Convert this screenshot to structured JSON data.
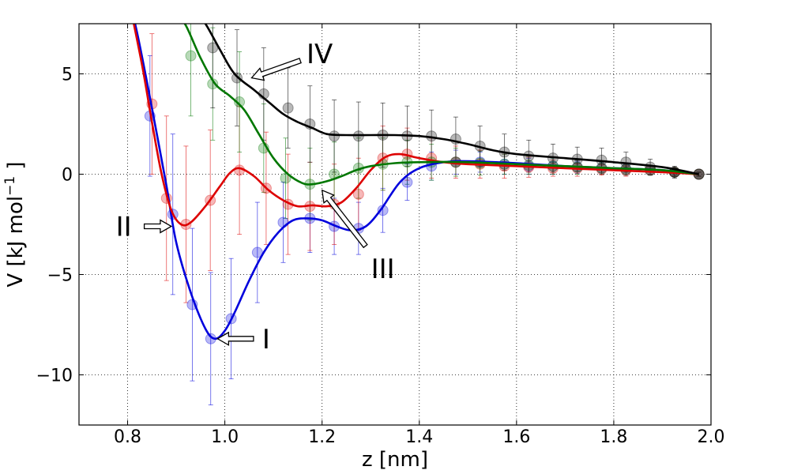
{
  "chart_data": {
    "type": "line",
    "title": "",
    "xlabel": "z [nm]",
    "ylabel_main": "V [kJ mol",
    "ylabel_sup": "−1",
    "ylabel_end": " ]",
    "xlim": [
      0.7,
      2.0
    ],
    "ylim": [
      -12.5,
      7.5
    ],
    "grid": true,
    "x_ticks": [
      0.8,
      1.0,
      1.2,
      1.4,
      1.6,
      1.8,
      2.0
    ],
    "x_tick_labels": [
      "0.8",
      "1.0",
      "1.2",
      "1.4",
      "1.6",
      "1.8",
      "2.0"
    ],
    "y_ticks": [
      5,
      0,
      -5,
      -10
    ],
    "y_tick_labels": [
      "5",
      "0",
      "−5",
      "−10"
    ],
    "series": [
      {
        "name": "blue",
        "color": "#0000dd",
        "curve": [
          [
            0.8,
            9.0
          ],
          [
            0.82,
            7.0
          ],
          [
            0.85,
            3.3
          ],
          [
            0.88,
            -0.6
          ],
          [
            0.9,
            -3.4
          ],
          [
            0.93,
            -5.9
          ],
          [
            0.96,
            -7.7
          ],
          [
            0.98,
            -8.2
          ],
          [
            1.0,
            -7.8
          ],
          [
            1.02,
            -6.9
          ],
          [
            1.05,
            -5.3
          ],
          [
            1.08,
            -3.9
          ],
          [
            1.11,
            -2.9
          ],
          [
            1.14,
            -2.3
          ],
          [
            1.17,
            -2.2
          ],
          [
            1.2,
            -2.3
          ],
          [
            1.23,
            -2.6
          ],
          [
            1.26,
            -2.8
          ],
          [
            1.29,
            -2.6
          ],
          [
            1.32,
            -1.8
          ],
          [
            1.36,
            -0.4
          ],
          [
            1.4,
            0.3
          ],
          [
            1.45,
            0.6
          ],
          [
            1.5,
            0.65
          ],
          [
            1.6,
            0.55
          ],
          [
            1.7,
            0.4
          ],
          [
            1.8,
            0.3
          ],
          [
            1.9,
            0.2
          ],
          [
            1.975,
            0.0
          ]
        ],
        "points": [
          [
            0.846,
            2.9,
            3.0
          ],
          [
            0.893,
            -2.0,
            4.0
          ],
          [
            0.933,
            -6.5,
            3.8
          ],
          [
            0.971,
            -8.2,
            3.3
          ],
          [
            1.013,
            -7.2,
            3.0
          ],
          [
            1.067,
            -3.9,
            2.5
          ],
          [
            1.12,
            -2.4,
            2.0
          ],
          [
            1.175,
            -2.2,
            1.7
          ],
          [
            1.225,
            -2.6,
            1.4
          ],
          [
            1.275,
            -2.7,
            1.3
          ],
          [
            1.325,
            -1.8,
            1.1
          ],
          [
            1.375,
            -0.4,
            0.9
          ],
          [
            1.425,
            0.4,
            0.7
          ],
          [
            1.475,
            0.6,
            0.6
          ],
          [
            1.525,
            0.6,
            0.5
          ],
          [
            1.575,
            0.5,
            0.5
          ],
          [
            1.625,
            0.4,
            0.4
          ],
          [
            1.675,
            0.4,
            0.4
          ],
          [
            1.725,
            0.35,
            0.3
          ],
          [
            1.775,
            0.3,
            0.3
          ],
          [
            1.825,
            0.25,
            0.3
          ],
          [
            1.875,
            0.2,
            0.2
          ],
          [
            1.925,
            0.1,
            0.2
          ],
          [
            1.975,
            0.0,
            0.1
          ]
        ]
      },
      {
        "name": "red",
        "color": "#dd0000",
        "curve": [
          [
            0.8,
            9.0
          ],
          [
            0.83,
            5.4
          ],
          [
            0.85,
            2.6
          ],
          [
            0.87,
            0.0
          ],
          [
            0.89,
            -1.8
          ],
          [
            0.91,
            -2.5
          ],
          [
            0.93,
            -2.4
          ],
          [
            0.96,
            -1.6
          ],
          [
            0.99,
            -0.6
          ],
          [
            1.01,
            0.05
          ],
          [
            1.03,
            0.3
          ],
          [
            1.06,
            -0.1
          ],
          [
            1.09,
            -0.8
          ],
          [
            1.12,
            -1.3
          ],
          [
            1.15,
            -1.6
          ],
          [
            1.18,
            -1.55
          ],
          [
            1.21,
            -1.6
          ],
          [
            1.24,
            -1.4
          ],
          [
            1.27,
            -0.7
          ],
          [
            1.3,
            0.2
          ],
          [
            1.33,
            0.85
          ],
          [
            1.36,
            1.0
          ],
          [
            1.4,
            0.8
          ],
          [
            1.45,
            0.6
          ],
          [
            1.5,
            0.5
          ],
          [
            1.6,
            0.4
          ],
          [
            1.7,
            0.3
          ],
          [
            1.8,
            0.2
          ],
          [
            1.9,
            0.1
          ],
          [
            1.975,
            0.0
          ]
        ],
        "points": [
          [
            0.85,
            3.5,
            3.5
          ],
          [
            0.88,
            -1.2,
            4.1
          ],
          [
            0.92,
            -2.5,
            3.9
          ],
          [
            0.97,
            -1.3,
            3.5
          ],
          [
            1.03,
            0.2,
            3.2
          ],
          [
            1.085,
            -0.7,
            2.8
          ],
          [
            1.13,
            -1.5,
            2.5
          ],
          [
            1.175,
            -1.6,
            2.2
          ],
          [
            1.225,
            -1.5,
            2.0
          ],
          [
            1.275,
            -1.0,
            1.8
          ],
          [
            1.325,
            0.8,
            1.6
          ],
          [
            1.375,
            1.0,
            1.3
          ],
          [
            1.425,
            0.8,
            1.0
          ],
          [
            1.475,
            0.6,
            0.8
          ],
          [
            1.525,
            0.5,
            0.7
          ],
          [
            1.575,
            0.4,
            0.6
          ],
          [
            1.625,
            0.35,
            0.5
          ],
          [
            1.675,
            0.3,
            0.4
          ],
          [
            1.725,
            0.3,
            0.4
          ],
          [
            1.775,
            0.25,
            0.3
          ],
          [
            1.825,
            0.2,
            0.3
          ],
          [
            1.875,
            0.2,
            0.2
          ],
          [
            1.925,
            0.1,
            0.2
          ],
          [
            1.975,
            0.0,
            0.1
          ]
        ]
      },
      {
        "name": "green",
        "color": "#007700",
        "curve": [
          [
            0.9,
            8.0
          ],
          [
            0.92,
            7.4
          ],
          [
            0.95,
            5.8
          ],
          [
            0.98,
            4.5
          ],
          [
            1.01,
            3.9
          ],
          [
            1.04,
            3.2
          ],
          [
            1.07,
            2.0
          ],
          [
            1.1,
            0.8
          ],
          [
            1.13,
            0.0
          ],
          [
            1.16,
            -0.45
          ],
          [
            1.18,
            -0.5
          ],
          [
            1.21,
            -0.35
          ],
          [
            1.24,
            -0.1
          ],
          [
            1.27,
            0.2
          ],
          [
            1.3,
            0.4
          ],
          [
            1.35,
            0.55
          ],
          [
            1.4,
            0.6
          ],
          [
            1.5,
            0.6
          ],
          [
            1.6,
            0.5
          ],
          [
            1.7,
            0.4
          ],
          [
            1.8,
            0.3
          ],
          [
            1.9,
            0.2
          ],
          [
            1.975,
            0.0
          ]
        ],
        "points": [
          [
            0.93,
            5.9,
            3.0
          ],
          [
            0.975,
            4.5,
            2.8
          ],
          [
            1.03,
            3.6,
            2.5
          ],
          [
            1.08,
            1.3,
            2.2
          ],
          [
            1.125,
            -0.2,
            2.0
          ],
          [
            1.175,
            -0.5,
            1.8
          ],
          [
            1.225,
            0.0,
            1.6
          ],
          [
            1.275,
            0.3,
            1.5
          ],
          [
            1.325,
            0.5,
            1.3
          ],
          [
            1.375,
            0.6,
            1.1
          ],
          [
            1.425,
            0.6,
            0.9
          ],
          [
            1.475,
            0.6,
            0.7
          ],
          [
            1.525,
            0.55,
            0.6
          ],
          [
            1.575,
            0.5,
            0.5
          ],
          [
            1.625,
            0.45,
            0.45
          ],
          [
            1.675,
            0.4,
            0.4
          ],
          [
            1.725,
            0.35,
            0.35
          ],
          [
            1.775,
            0.3,
            0.3
          ],
          [
            1.825,
            0.25,
            0.3
          ],
          [
            1.875,
            0.2,
            0.25
          ],
          [
            1.925,
            0.1,
            0.2
          ],
          [
            1.975,
            0.0,
            0.1
          ]
        ]
      },
      {
        "name": "black",
        "color": "#000000",
        "curve": [
          [
            0.94,
            8.0
          ],
          [
            0.96,
            7.5
          ],
          [
            0.99,
            6.2
          ],
          [
            1.02,
            5.0
          ],
          [
            1.06,
            4.2
          ],
          [
            1.09,
            3.6
          ],
          [
            1.12,
            3.0
          ],
          [
            1.15,
            2.6
          ],
          [
            1.18,
            2.3
          ],
          [
            1.21,
            2.0
          ],
          [
            1.25,
            1.95
          ],
          [
            1.3,
            1.95
          ],
          [
            1.35,
            1.95
          ],
          [
            1.4,
            1.9
          ],
          [
            1.45,
            1.75
          ],
          [
            1.5,
            1.5
          ],
          [
            1.55,
            1.2
          ],
          [
            1.6,
            1.0
          ],
          [
            1.7,
            0.8
          ],
          [
            1.8,
            0.6
          ],
          [
            1.9,
            0.35
          ],
          [
            1.975,
            0.0
          ]
        ],
        "points": [
          [
            0.975,
            6.3,
            3.0
          ],
          [
            1.025,
            4.8,
            2.4
          ],
          [
            1.08,
            4.0,
            2.3
          ],
          [
            1.13,
            3.3,
            2.0
          ],
          [
            1.175,
            2.5,
            1.9
          ],
          [
            1.225,
            1.9,
            1.8
          ],
          [
            1.275,
            1.9,
            1.7
          ],
          [
            1.325,
            1.95,
            1.6
          ],
          [
            1.375,
            1.9,
            1.5
          ],
          [
            1.425,
            1.9,
            1.3
          ],
          [
            1.475,
            1.75,
            1.1
          ],
          [
            1.525,
            1.4,
            1.0
          ],
          [
            1.575,
            1.1,
            0.9
          ],
          [
            1.625,
            0.9,
            0.8
          ],
          [
            1.675,
            0.8,
            0.7
          ],
          [
            1.725,
            0.75,
            0.6
          ],
          [
            1.775,
            0.7,
            0.6
          ],
          [
            1.825,
            0.6,
            0.5
          ],
          [
            1.875,
            0.35,
            0.4
          ],
          [
            1.925,
            0.1,
            0.3
          ],
          [
            1.975,
            0.0,
            0.1
          ]
        ]
      }
    ],
    "annotations": [
      {
        "label": "I",
        "text": [
          1.085,
          -8.2
        ],
        "tip": [
          0.985,
          -8.2
        ]
      },
      {
        "label": "II",
        "text": [
          0.792,
          -2.6
        ],
        "tip": [
          0.89,
          -2.6
        ]
      },
      {
        "label": "III",
        "text": [
          1.325,
          -4.7
        ],
        "tip": [
          1.2,
          -0.8
        ]
      },
      {
        "label": "IV",
        "text": [
          1.195,
          6.0
        ],
        "tip": [
          1.055,
          4.8
        ]
      }
    ]
  }
}
